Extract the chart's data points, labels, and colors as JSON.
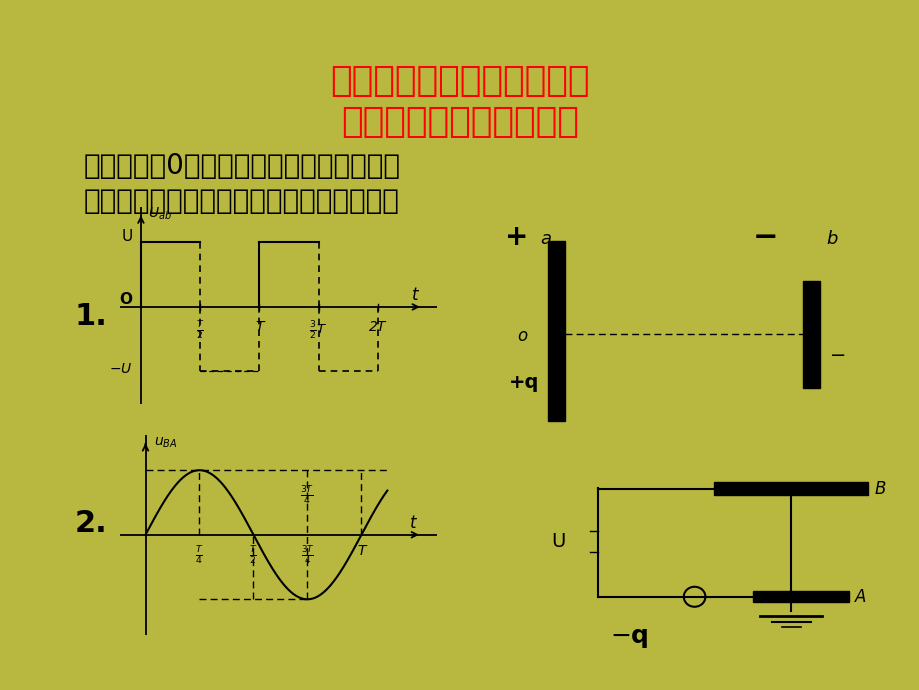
{
  "title_line1": "应用速度图像分析带电粒子",
  "title_line2": "在交变电场中的运动规律",
  "title_color": "#FF0000",
  "title_fontsize": 26,
  "body_line1": "粒子初速为0，重力不计，板间电压变化如",
  "body_line2": "下图，应用运动图像描述粒子的运动情况：",
  "body_fontsize": 20,
  "bg_inner": "#FFFFF0",
  "bg_outer": "#B8B840",
  "corner_tl": "#6AAF3D",
  "corner_tr": "#5BBFBF",
  "corner_bl": "#8A8A20",
  "corner_br": "#5BBFBF",
  "label_1": "1.",
  "label_2": "2.",
  "label_fontsize": 22
}
